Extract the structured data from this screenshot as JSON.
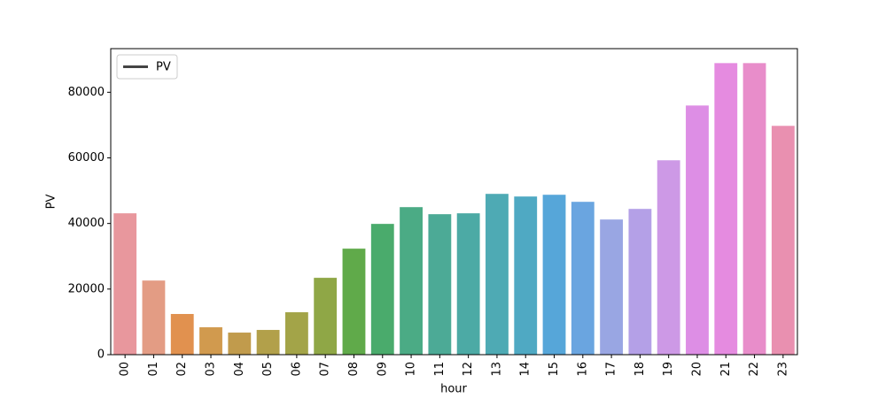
{
  "chart_data": {
    "type": "bar",
    "xlabel": "hour",
    "ylabel": "PV",
    "categories": [
      "00",
      "01",
      "02",
      "03",
      "04",
      "05",
      "06",
      "07",
      "08",
      "09",
      "10",
      "11",
      "12",
      "13",
      "14",
      "15",
      "16",
      "17",
      "18",
      "19",
      "20",
      "21",
      "22",
      "23"
    ],
    "values": [
      43100,
      22600,
      12400,
      8350,
      6730,
      7540,
      12930,
      23430,
      32320,
      39870,
      44980,
      42830,
      43100,
      49020,
      48220,
      48750,
      46600,
      41210,
      44440,
      59260,
      75960,
      88890,
      88890,
      69760
    ],
    "colors": [
      "#e8979d",
      "#e39c84",
      "#e1914f",
      "#d19a4e",
      "#c19b4c",
      "#b2a04a",
      "#a3a448",
      "#8fa746",
      "#60aa4a",
      "#4aab6c",
      "#4bab85",
      "#4caa96",
      "#4caaa5",
      "#4eaab4",
      "#4fa9c3",
      "#56a6d9",
      "#6aa5e0",
      "#99a6e3",
      "#b4a0e7",
      "#cd99e6",
      "#dd8ee5",
      "#e58be0",
      "#e88dca",
      "#e990b0"
    ],
    "legend": {
      "label": "PV",
      "color": "#444444",
      "loc": "upper left"
    },
    "ylim": [
      0,
      93300
    ],
    "yticks": [
      0,
      20000,
      40000,
      60000,
      80000
    ],
    "grid": false
  }
}
